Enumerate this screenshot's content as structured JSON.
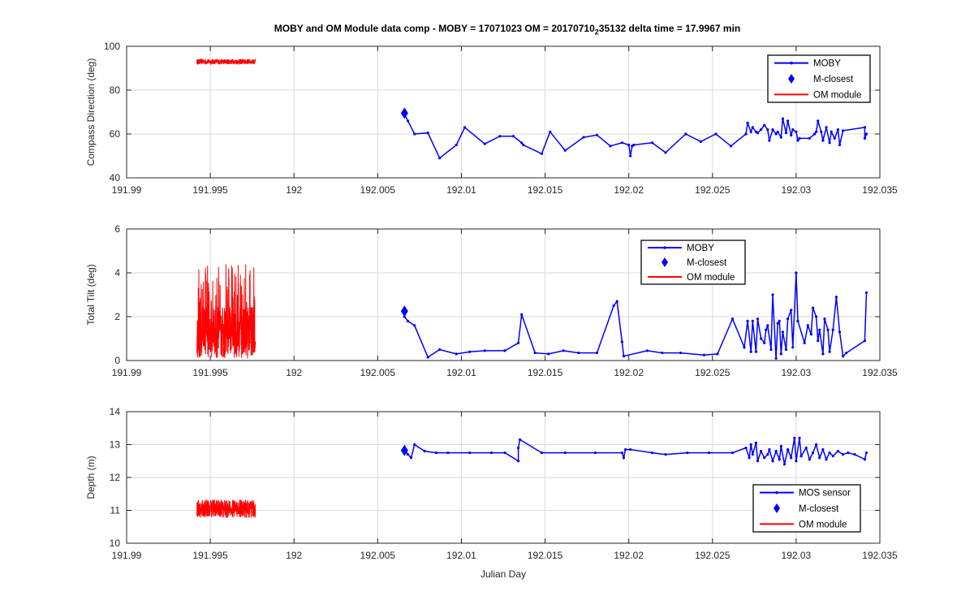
{
  "figure": {
    "title": {
      "main": "MOBY and OM Module data comp - MOBY = 17071023 OM = 20170710",
      "sub": "2",
      "tail": "35132 delta time = 17.9967 min"
    },
    "xlabel": "Julian Day"
  },
  "colors": {
    "moby": "#0000ff",
    "om": "#ff0000",
    "grid": "#d9d9d9"
  },
  "chart_data": [
    {
      "type": "line",
      "ylabel": "Compass Direction (deg)",
      "xlim": [
        191.99,
        192.035
      ],
      "ylim": [
        40,
        100
      ],
      "xticks": [
        191.99,
        191.995,
        192,
        192.005,
        192.01,
        192.015,
        192.02,
        192.025,
        192.03,
        192.035
      ],
      "xtick_labels": [
        "191.99",
        "191.995",
        "192",
        "192.005",
        "192.01",
        "192.015",
        "192.02",
        "192.025",
        "192.03",
        "192.035"
      ],
      "yticks": [
        40,
        60,
        80,
        100
      ],
      "ytick_labels": [
        "40",
        "60",
        "80",
        "100"
      ],
      "grid": true,
      "legend_position": "top-right",
      "legend": [
        "MOBY",
        "M-closest",
        "OM module"
      ],
      "moby": {
        "x": [
          192.0066,
          192.0068,
          192.0072,
          192.008,
          192.0087,
          192.0097,
          192.0102,
          192.0114,
          192.0123,
          192.0131,
          192.0136,
          192.0137,
          192.0148,
          192.0153,
          192.0162,
          192.0173,
          192.0181,
          192.0189,
          192.0196,
          192.02,
          192.0201,
          192.0202,
          192.0203,
          192.0214,
          192.0222,
          192.0234,
          192.0243,
          192.0252,
          192.0261,
          192.027,
          192.0271,
          192.0273,
          192.0274,
          192.0276,
          192.0277,
          192.0279,
          192.0281,
          192.0283,
          192.0284,
          192.0286,
          192.0288,
          192.0289,
          192.0291,
          192.0292,
          192.0294,
          192.0295,
          192.0297,
          192.0298,
          192.03,
          192.0301,
          192.0302,
          192.0308,
          192.0311,
          192.0312,
          192.0313,
          192.0315,
          192.0316,
          192.0318,
          192.032,
          192.0321,
          192.0323,
          192.0325,
          192.0326,
          192.0328,
          192.0341,
          192.0341,
          192.0342
        ],
        "y": [
          69,
          66,
          60,
          60.5,
          49,
          55,
          63,
          55.5,
          59,
          59,
          56,
          55,
          51,
          61,
          52.5,
          58.5,
          59.5,
          54.5,
          56,
          55,
          50,
          54.5,
          55,
          56,
          51.5,
          60,
          56.5,
          60,
          54.5,
          60,
          65,
          61,
          63,
          61,
          60.5,
          62,
          64,
          62,
          57,
          62,
          60,
          61,
          58.5,
          67,
          60.5,
          66,
          59.5,
          62,
          61,
          57,
          58,
          58,
          60,
          61,
          66,
          61,
          57,
          63,
          56,
          61,
          58,
          62,
          55,
          61.5,
          63,
          58,
          60
        ]
      },
      "closest": {
        "x": 192.0066,
        "y": 69.5
      },
      "om": {
        "x_start": 191.9942,
        "x_end": 191.9977,
        "base": 93,
        "amplitude": 2.4
      }
    },
    {
      "type": "line",
      "ylabel": "Total Tilt (deg)",
      "xlim": [
        191.99,
        192.035
      ],
      "ylim": [
        0,
        6
      ],
      "xticks": [
        191.99,
        191.995,
        192,
        192.005,
        192.01,
        192.015,
        192.02,
        192.025,
        192.03,
        192.035
      ],
      "xtick_labels": [
        "191.99",
        "191.995",
        "192",
        "192.005",
        "192.01",
        "192.015",
        "192.02",
        "192.025",
        "192.03",
        "192.035"
      ],
      "yticks": [
        0,
        2,
        4,
        6
      ],
      "ytick_labels": [
        "0",
        "2",
        "4",
        "6"
      ],
      "grid": true,
      "legend_position": "top-center",
      "legend": [
        "MOBY",
        "M-closest",
        "OM module"
      ],
      "moby": {
        "x": [
          192.0066,
          192.0068,
          192.0072,
          192.008,
          192.0087,
          192.0097,
          192.0105,
          192.0114,
          192.0126,
          192.0134,
          192.0136,
          192.0144,
          192.0152,
          192.0161,
          192.017,
          192.0181,
          192.0191,
          192.0193,
          192.0196,
          192.0197,
          192.0211,
          192.022,
          192.0231,
          192.0245,
          192.0253,
          192.0262,
          192.0269,
          192.0271,
          192.0273,
          192.0274,
          192.0276,
          192.0277,
          192.0279,
          192.0281,
          192.0282,
          192.0283,
          192.0285,
          192.0286,
          192.0288,
          192.0289,
          192.029,
          192.0291,
          192.0292,
          192.0294,
          192.0295,
          192.0297,
          192.0298,
          192.03,
          192.0301,
          192.0305,
          192.0307,
          192.0309,
          192.031,
          192.0312,
          192.0313,
          192.0314,
          192.0316,
          192.0317,
          192.0319,
          192.032,
          192.0322,
          192.0324,
          192.0326,
          192.0328,
          192.033,
          192.0341,
          192.0342
        ],
        "y": [
          2.0,
          1.8,
          1.6,
          0.15,
          0.5,
          0.3,
          0.4,
          0.45,
          0.45,
          0.8,
          2.1,
          0.35,
          0.3,
          0.45,
          0.35,
          0.35,
          2.5,
          2.7,
          0.85,
          0.2,
          0.45,
          0.35,
          0.35,
          0.25,
          0.3,
          1.9,
          0.6,
          1.8,
          0.4,
          1.8,
          0.4,
          1.9,
          1.0,
          0.8,
          1.4,
          1.6,
          0.5,
          3.0,
          0.1,
          1.7,
          1.8,
          0.3,
          1.3,
          0.5,
          1.9,
          2.3,
          0.6,
          4.0,
          1.8,
          0.8,
          1.6,
          1.2,
          2.4,
          2.0,
          0.9,
          1.4,
          0.3,
          1.9,
          1.4,
          0.4,
          1.4,
          2.9,
          1.3,
          0.2,
          0.35,
          0.9,
          3.1
        ]
      },
      "closest": {
        "x": 192.0066,
        "y": 2.25
      },
      "om": {
        "x_start": 191.9942,
        "x_end": 191.9977,
        "base": 0.8,
        "amplitude": 4.3
      }
    },
    {
      "type": "line",
      "ylabel": "Depth (m)",
      "xlim": [
        191.99,
        192.035
      ],
      "ylim": [
        10,
        14
      ],
      "xticks": [
        191.99,
        191.995,
        192,
        192.005,
        192.01,
        192.015,
        192.02,
        192.025,
        192.03,
        192.035
      ],
      "xtick_labels": [
        "191.99",
        "191.995",
        "192",
        "192.005",
        "192.01",
        "192.015",
        "192.02",
        "192.025",
        "192.03",
        "192.035"
      ],
      "yticks": [
        10,
        11,
        12,
        13,
        14
      ],
      "ytick_labels": [
        "10",
        "11",
        "12",
        "13",
        "14"
      ],
      "grid": true,
      "legend_position": "bottom-right",
      "legend": [
        "MOS sensor",
        "M-closest",
        "OM module"
      ],
      "moby": {
        "x": [
          192.0066,
          192.0068,
          192.007,
          192.0072,
          192.0078,
          192.0085,
          192.0092,
          192.0105,
          192.0118,
          192.0126,
          192.0134,
          192.0134,
          192.0135,
          192.0148,
          192.0162,
          192.018,
          192.0196,
          192.0197,
          192.0198,
          192.0201,
          192.0214,
          192.0222,
          192.0235,
          192.0248,
          192.0262,
          192.027,
          192.0272,
          192.0273,
          192.0274,
          192.0276,
          192.0277,
          192.0279,
          192.0281,
          192.0283,
          192.0284,
          192.0286,
          192.0288,
          192.029,
          192.0291,
          192.0293,
          192.0295,
          192.0297,
          192.0299,
          192.03,
          192.0302,
          192.0303,
          192.0306,
          192.0308,
          192.031,
          192.0312,
          192.0314,
          192.0316,
          192.0318,
          192.032,
          192.0322,
          192.0325,
          192.0328,
          192.0331,
          192.0335,
          192.0341,
          192.0342
        ],
        "y": [
          12.85,
          12.7,
          12.6,
          13.0,
          12.8,
          12.75,
          12.75,
          12.75,
          12.75,
          12.75,
          12.5,
          12.9,
          13.15,
          12.75,
          12.75,
          12.75,
          12.75,
          12.6,
          12.85,
          12.85,
          12.75,
          12.7,
          12.75,
          12.75,
          12.75,
          12.9,
          12.6,
          13.0,
          12.7,
          13.05,
          12.5,
          12.8,
          12.6,
          12.7,
          12.85,
          12.5,
          12.8,
          12.55,
          12.95,
          12.4,
          12.85,
          12.6,
          13.2,
          12.5,
          13.2,
          12.65,
          12.9,
          12.55,
          12.75,
          13.0,
          12.6,
          12.85,
          12.55,
          12.75,
          12.65,
          12.8,
          12.7,
          12.75,
          12.7,
          12.55,
          12.75
        ]
      },
      "closest": {
        "x": 192.0066,
        "y": 12.82
      },
      "om": {
        "x_start": 191.9942,
        "x_end": 191.9977,
        "base": 11.05,
        "amplitude": 0.55
      }
    }
  ]
}
